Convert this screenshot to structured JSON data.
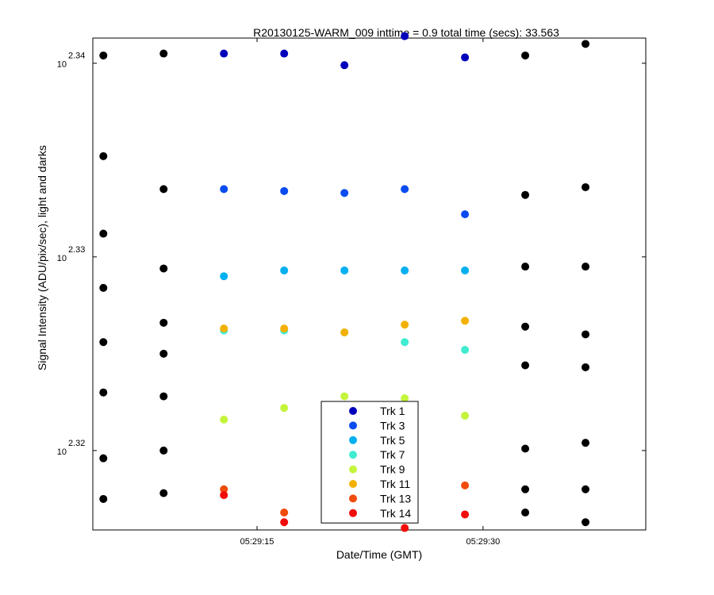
{
  "chart_data": {
    "type": "scatter",
    "title": "R20130125-WARM_009 inttime = 0.9 total time (secs): 33.563",
    "xlabel": "Date/Time (GMT)",
    "ylabel": "Signal Intensity (ADU/pix/sec), light and darks",
    "x_tick_labels": [
      "05:29:15",
      "05:29:30"
    ],
    "y_ticks": [
      {
        "base": "10",
        "exp": "2.34",
        "value": 2.34
      },
      {
        "base": "10",
        "exp": "2.33",
        "value": 2.33
      },
      {
        "base": "10",
        "exp": "2.32",
        "value": 2.32
      }
    ],
    "y_scale": "log10",
    "ylim_log10": [
      2.3159,
      2.3413
    ],
    "xlim_seconds": [
      5.1,
      41.8
    ],
    "grid": false,
    "legend_position": "bottom-center",
    "dark_color": "#000000",
    "dark_points": [
      [
        5.8,
        2.3404
      ],
      [
        5.8,
        2.3352
      ],
      [
        5.8,
        2.3312
      ],
      [
        5.8,
        2.3284
      ],
      [
        5.8,
        2.3256
      ],
      [
        5.8,
        2.323
      ],
      [
        5.8,
        2.3196
      ],
      [
        5.8,
        2.3175
      ],
      [
        9.8,
        2.3405
      ],
      [
        9.8,
        2.3335
      ],
      [
        9.8,
        2.3294
      ],
      [
        9.8,
        2.3266
      ],
      [
        9.8,
        2.325
      ],
      [
        9.8,
        2.3228
      ],
      [
        9.8,
        2.32
      ],
      [
        9.8,
        2.3178
      ],
      [
        33.8,
        2.3404
      ],
      [
        33.8,
        2.3332
      ],
      [
        33.8,
        2.3295
      ],
      [
        33.8,
        2.3264
      ],
      [
        33.8,
        2.3244
      ],
      [
        33.8,
        2.3201
      ],
      [
        33.8,
        2.318
      ],
      [
        33.8,
        2.3168
      ],
      [
        37.8,
        2.341
      ],
      [
        37.8,
        2.3336
      ],
      [
        37.8,
        2.3295
      ],
      [
        37.8,
        2.326
      ],
      [
        37.8,
        2.3243
      ],
      [
        37.8,
        2.3204
      ],
      [
        37.8,
        2.318
      ],
      [
        37.8,
        2.3163
      ]
    ],
    "series": [
      {
        "name": "Trk 1",
        "color": "#0000bb",
        "x": [
          13.8,
          17.8,
          21.8,
          25.8,
          29.8
        ],
        "y": [
          2.3405,
          2.3405,
          2.3399,
          2.3414,
          2.3403
        ]
      },
      {
        "name": "Trk 3",
        "color": "#0a4cf0",
        "x": [
          13.8,
          17.8,
          21.8,
          25.8,
          29.8
        ],
        "y": [
          2.3335,
          2.3334,
          2.3333,
          2.3335,
          2.3322
        ]
      },
      {
        "name": "Trk 5",
        "color": "#00b0f0",
        "x": [
          13.8,
          17.8,
          21.8,
          25.8,
          29.8
        ],
        "y": [
          2.329,
          2.3293,
          2.3293,
          2.3293,
          2.3293
        ]
      },
      {
        "name": "Trk 7",
        "color": "#40ecd0",
        "x": [
          13.8,
          17.8,
          21.8,
          25.8,
          29.8
        ],
        "y": [
          2.3262,
          2.3262,
          2.3261,
          2.3256,
          2.3252
        ]
      },
      {
        "name": "Trk 9",
        "color": "#c4f43c",
        "x": [
          13.8,
          17.8,
          21.8,
          25.8,
          29.8
        ],
        "y": [
          2.3216,
          2.3222,
          2.3228,
          2.3227,
          2.3218
        ]
      },
      {
        "name": "Trk 11",
        "color": "#f4b000",
        "x": [
          13.8,
          17.8,
          21.8,
          25.8,
          29.8
        ],
        "y": [
          2.3263,
          2.3263,
          2.3261,
          2.3265,
          2.3267
        ]
      },
      {
        "name": "Trk 13",
        "color": "#f04c0c",
        "x": [
          13.8,
          17.8,
          29.8
        ],
        "y": [
          2.318,
          2.3168,
          2.3182
        ]
      },
      {
        "name": "Trk 14",
        "color": "#f00c0c",
        "x": [
          13.8,
          17.8,
          25.8,
          29.8
        ],
        "y": [
          2.3177,
          2.3163,
          2.316,
          2.3167
        ]
      }
    ]
  }
}
